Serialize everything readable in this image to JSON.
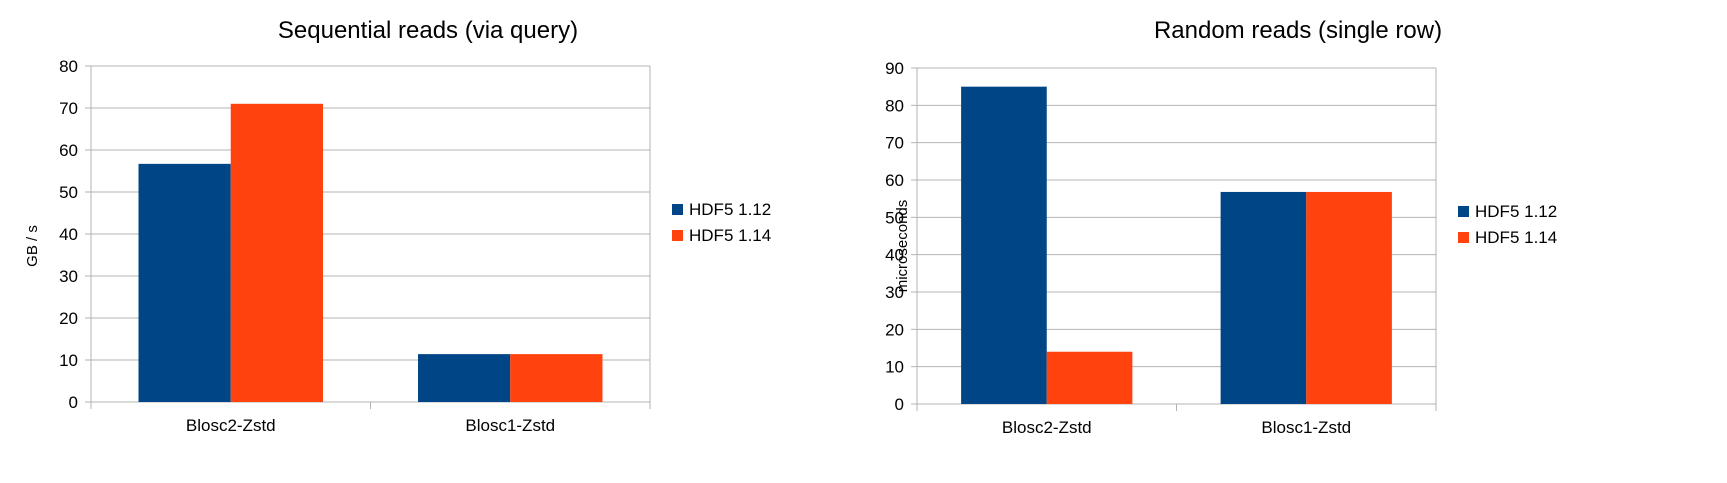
{
  "chart_data": [
    {
      "type": "bar",
      "title": "Sequential reads (via query)",
      "xlabel": "",
      "ylabel": "GB / s",
      "categories": [
        "Blosc2-Zstd",
        "Blosc1-Zstd"
      ],
      "ylim": [
        0,
        80
      ],
      "yticks": [
        0,
        10,
        20,
        30,
        40,
        50,
        60,
        70,
        80
      ],
      "grid": true,
      "legend_position": "right",
      "series": [
        {
          "name": "HDF5 1.12",
          "color": "#004586",
          "values": [
            56.7,
            11.4
          ]
        },
        {
          "name": "HDF5 1.14",
          "color": "#ff420e",
          "values": [
            71.0,
            11.4
          ]
        }
      ]
    },
    {
      "type": "bar",
      "title": "Random reads (single row)",
      "xlabel": "",
      "ylabel": "microseconds",
      "categories": [
        "Blosc2-Zstd",
        "Blosc1-Zstd"
      ],
      "ylim": [
        0,
        90
      ],
      "yticks": [
        0,
        10,
        20,
        30,
        40,
        50,
        60,
        70,
        80,
        90
      ],
      "grid": true,
      "legend_position": "right",
      "series": [
        {
          "name": "HDF5 1.12",
          "color": "#004586",
          "values": [
            85.0,
            56.8
          ]
        },
        {
          "name": "HDF5 1.14",
          "color": "#ff420e",
          "values": [
            14.0,
            56.8
          ]
        }
      ]
    }
  ]
}
